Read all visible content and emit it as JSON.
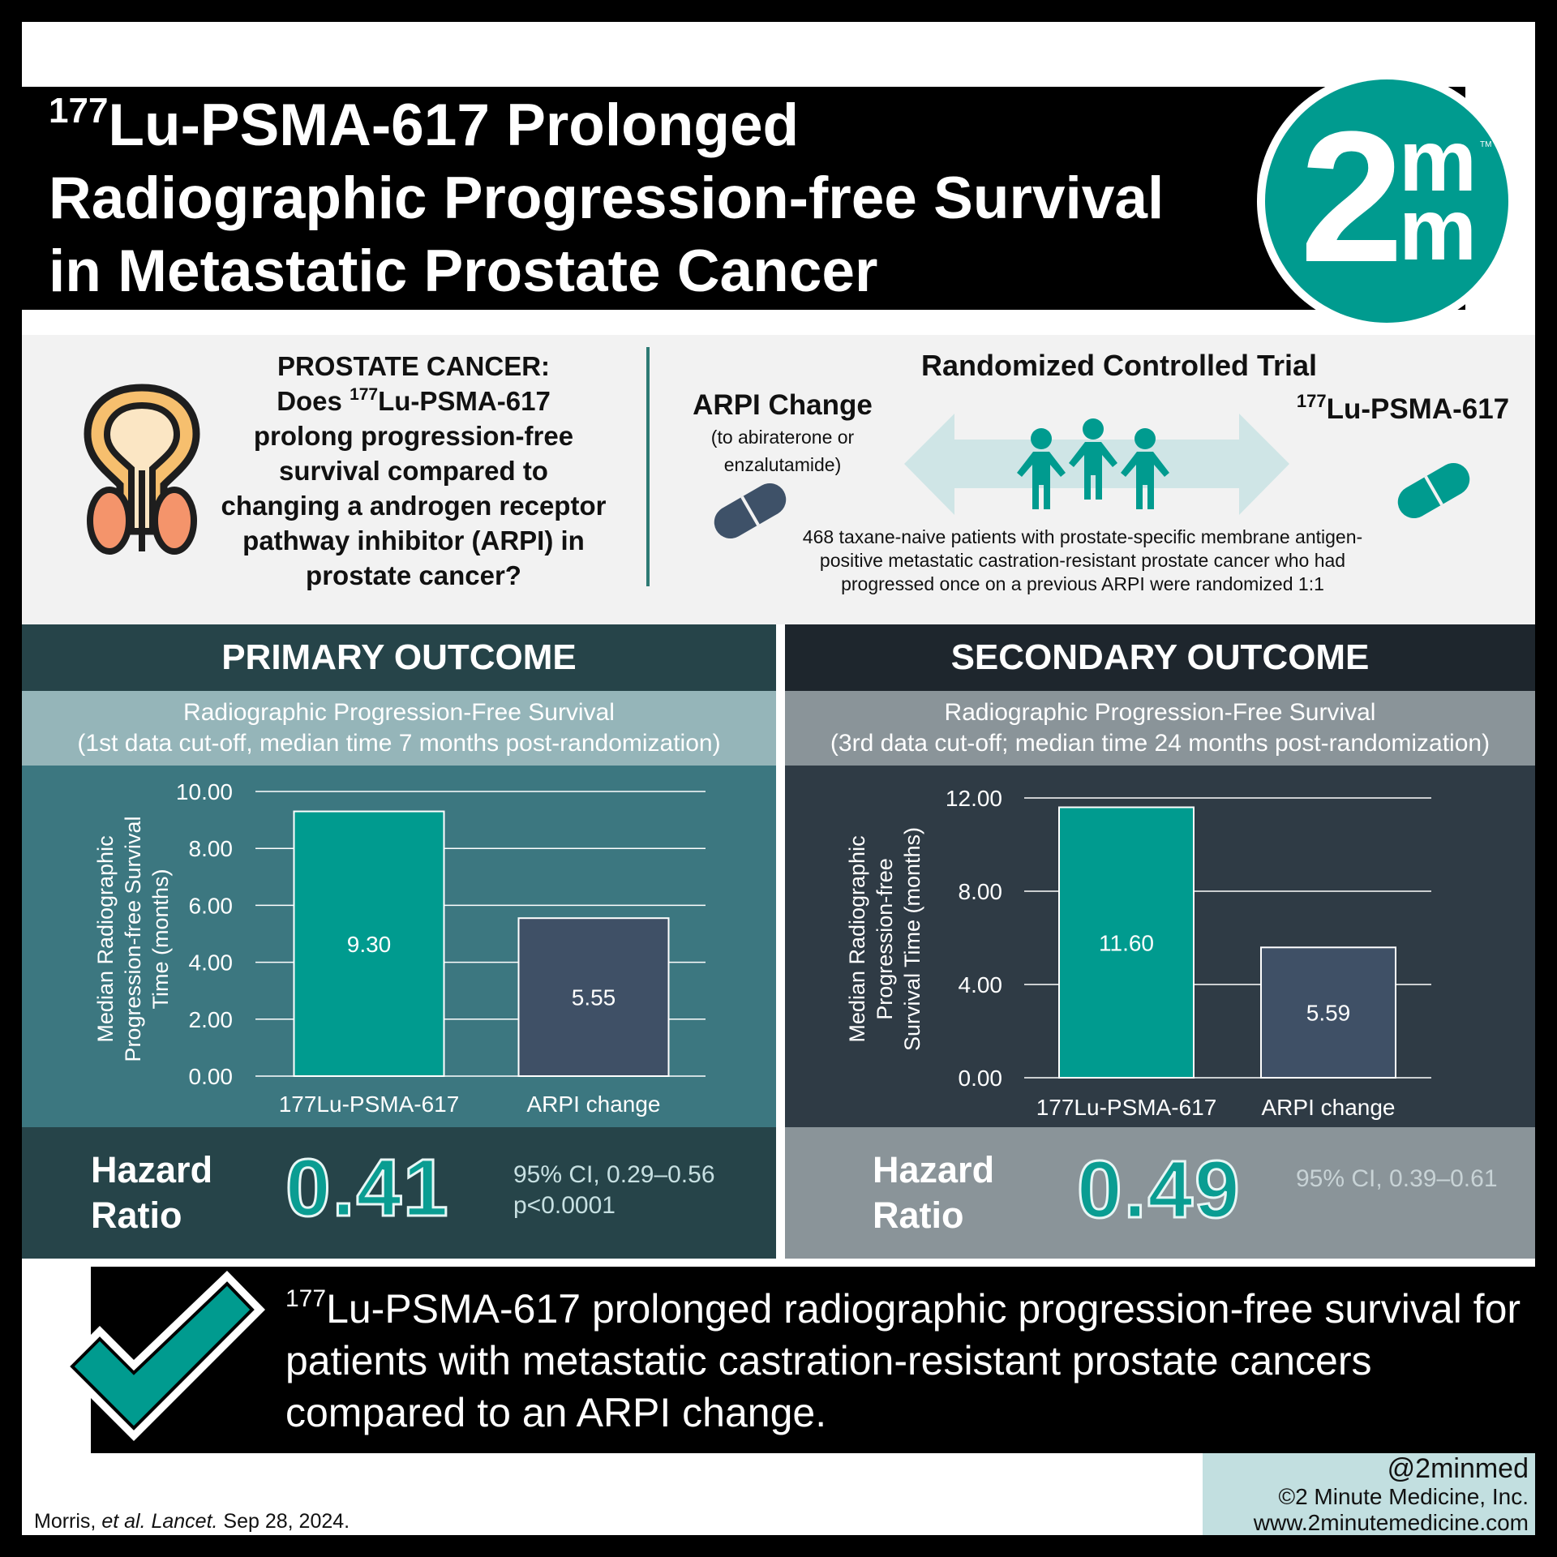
{
  "header": {
    "title_sup": "177",
    "title_line1": "Lu-PSMA-617 Prolonged",
    "title_line2": "Radiographic Progression-free Survival",
    "title_line3": "in Metastatic Prostate Cancer",
    "logo_main": "2",
    "logo_m_top": "m",
    "logo_m_bottom": "m",
    "logo_tm": "TM"
  },
  "question": {
    "heading": "PROSTATE CANCER:",
    "line_pre": "Does ",
    "line_sup": "177",
    "line_post": "Lu-PSMA-617",
    "rest": "prolong progression-free survival compared to changing a androgen receptor pathway inhibitor (ARPI) in prostate cancer?"
  },
  "trial": {
    "title": "Randomized Controlled Trial",
    "arm_left_label": "ARPI Change",
    "arm_left_sub1": "(to abiraterone or",
    "arm_left_sub2": "enzalutamide)",
    "arm_right_sup": "177",
    "arm_right_label": "Lu-PSMA-617",
    "description": "468 taxane-naive patients with prostate-specific membrane antigen-positive metastatic castration-resistant prostate cancer who had progressed once on a previous ARPI were randomized 1:1"
  },
  "primary": {
    "heading": "PRIMARY OUTCOME",
    "sub1": "Radiographic Progression-Free Survival",
    "sub2": "(1st data cut-off, median time 7 months post-randomization)",
    "hr_label1": "Hazard",
    "hr_label2": "Ratio",
    "hr_value": "0.41",
    "ci": "95% CI, 0.29–0.56",
    "p": "p<0.0001"
  },
  "secondary": {
    "heading": "SECONDARY OUTCOME",
    "sub1": "Radiographic Progression-Free Survival",
    "sub2": "(3rd data cut-off; median time 24 months post-randomization)",
    "hr_label1": "Hazard",
    "hr_label2": "Ratio",
    "hr_value": "0.49",
    "ci": "95% CI, 0.39–0.61"
  },
  "chart_data": [
    {
      "type": "bar",
      "categories": [
        "177Lu-PSMA-617",
        "ARPI change"
      ],
      "values": [
        9.3,
        5.55
      ],
      "data_labels": [
        "9.30",
        "5.55"
      ],
      "ylabel_lines": [
        "Median Radiographic",
        "Progression-free Survival",
        "Time (months)"
      ],
      "ylim": [
        0,
        10
      ],
      "yticks": [
        0,
        2,
        4,
        6,
        8,
        10
      ],
      "ytick_labels": [
        "0.00",
        "2.00",
        "4.00",
        "6.00",
        "8.00",
        "10.00"
      ],
      "colors": [
        "#009b8f",
        "#3f5066"
      ],
      "grid": true
    },
    {
      "type": "bar",
      "categories": [
        "177Lu-PSMA-617",
        "ARPI change"
      ],
      "values": [
        11.6,
        5.59
      ],
      "data_labels": [
        "11.60",
        "5.59"
      ],
      "ylabel_lines": [
        "Median Radiographic",
        "Progression-free",
        "Survival Time (months)"
      ],
      "ylim": [
        0,
        12
      ],
      "yticks": [
        0,
        4,
        8,
        12
      ],
      "ytick_labels": [
        "0.00",
        "4.00",
        "8.00",
        "12.00"
      ],
      "colors": [
        "#009b8f",
        "#3f5066"
      ],
      "grid": true
    }
  ],
  "conclusion": {
    "sup": "177",
    "text": "Lu-PSMA-617 prolonged radiographic progression-free survival for patients with metastatic castration-resistant prostate cancers compared to an ARPI change."
  },
  "footer": {
    "cite_author": "Morris, ",
    "cite_etal": "et al. Lancet.",
    "cite_date": " Sep 28, 2024.",
    "handle": "@2minmed",
    "copyright": "©2 Minute Medicine, Inc.",
    "website": "www.2minutemedicine.com"
  },
  "icons": [
    "prostate-icon",
    "pill-icon",
    "people-icon",
    "double-arrow-icon",
    "checkmark-icon"
  ],
  "colors": {
    "teal": "#009b8f",
    "slate": "#3f5066",
    "primary_head": "#264449",
    "primary_sub": "#95b5b9",
    "primary_chart": "#3c7780",
    "secondary_head": "#1e262d",
    "secondary_sub": "#8a9499",
    "secondary_chart": "#2f3b45"
  }
}
